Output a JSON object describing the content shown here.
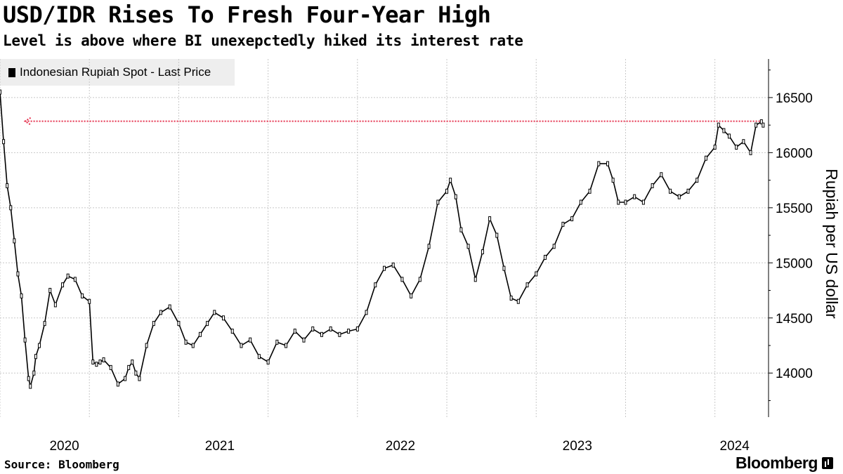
{
  "header": {
    "title": "USD/IDR Rises To Fresh Four-Year High",
    "subtitle": "Level is above where BI unexepctedly hiked its interest rate"
  },
  "legend": {
    "label": "Indonesian Rupiah Spot - Last Price"
  },
  "footer": {
    "source": "Source: Bloomberg",
    "brand": "Bloomberg"
  },
  "colors": {
    "line": "#000000",
    "reference": "#e5334f",
    "grid": "#c8c8c8"
  },
  "chart_data": {
    "type": "line",
    "title": "USD/IDR Rises To Fresh Four-Year High",
    "subtitle": "Level is above where BI unexepctedly hiked its interest rate",
    "ylabel": "Rupiah per US dollar",
    "xlabel": "",
    "ylim": [
      13600,
      16850
    ],
    "yticks": [
      14000,
      14500,
      15000,
      15500,
      16000,
      16500
    ],
    "xlim": [
      2020.0,
      2024.3
    ],
    "xticks": [
      {
        "label": "2020",
        "value": 2020.36
      },
      {
        "label": "2021",
        "value": 2021.23
      },
      {
        "label": "2022",
        "value": 2022.24
      },
      {
        "label": "2023",
        "value": 2023.23
      },
      {
        "label": "2024",
        "value": 2024.11
      }
    ],
    "x_gridlines": [
      2020.0,
      2020.5,
      2021.0,
      2021.5,
      2022.0,
      2022.5,
      2023.0,
      2023.5,
      2024.0
    ],
    "reference_line": {
      "value": 16285,
      "style": "dotted",
      "x_start": 2020.14,
      "x_end": 2024.27
    },
    "series": [
      {
        "name": "Indonesian Rupiah Spot - Last Price",
        "x": [
          2020.0,
          2020.02,
          2020.04,
          2020.06,
          2020.08,
          2020.1,
          2020.12,
          2020.14,
          2020.16,
          2020.17,
          2020.19,
          2020.2,
          2020.22,
          2020.25,
          2020.28,
          2020.31,
          2020.35,
          2020.38,
          2020.42,
          2020.46,
          2020.5,
          2020.52,
          2020.54,
          2020.56,
          2020.58,
          2020.62,
          2020.66,
          2020.7,
          2020.72,
          2020.74,
          2020.76,
          2020.78,
          2020.82,
          2020.86,
          2020.9,
          2020.95,
          2021.0,
          2021.04,
          2021.08,
          2021.12,
          2021.16,
          2021.2,
          2021.25,
          2021.3,
          2021.35,
          2021.4,
          2021.45,
          2021.5,
          2021.55,
          2021.6,
          2021.65,
          2021.7,
          2021.75,
          2021.8,
          2021.85,
          2021.9,
          2021.95,
          2022.0,
          2022.05,
          2022.1,
          2022.15,
          2022.2,
          2022.25,
          2022.3,
          2022.35,
          2022.4,
          2022.45,
          2022.5,
          2022.52,
          2022.55,
          2022.58,
          2022.62,
          2022.66,
          2022.7,
          2022.74,
          2022.78,
          2022.82,
          2022.86,
          2022.9,
          2022.95,
          2023.0,
          2023.05,
          2023.1,
          2023.15,
          2023.2,
          2023.25,
          2023.3,
          2023.35,
          2023.4,
          2023.43,
          2023.46,
          2023.5,
          2023.55,
          2023.6,
          2023.65,
          2023.7,
          2023.75,
          2023.8,
          2023.85,
          2023.9,
          2023.95,
          2024.0,
          2024.02,
          2024.05,
          2024.08,
          2024.12,
          2024.16,
          2024.2,
          2024.23,
          2024.26,
          2024.27
        ],
        "values": [
          16550,
          16100,
          15700,
          15500,
          15200,
          14900,
          14700,
          14300,
          13950,
          13880,
          14000,
          14150,
          14250,
          14450,
          14750,
          14620,
          14800,
          14880,
          14850,
          14700,
          14650,
          14100,
          14080,
          14100,
          14120,
          14050,
          13900,
          13950,
          14050,
          14100,
          14000,
          13950,
          14250,
          14450,
          14550,
          14600,
          14450,
          14280,
          14250,
          14350,
          14450,
          14550,
          14500,
          14380,
          14250,
          14300,
          14150,
          14100,
          14280,
          14250,
          14380,
          14300,
          14400,
          14350,
          14400,
          14350,
          14380,
          14400,
          14550,
          14800,
          14950,
          14980,
          14850,
          14700,
          14850,
          15150,
          15550,
          15650,
          15750,
          15600,
          15300,
          15150,
          14850,
          15100,
          15400,
          15250,
          14950,
          14680,
          14650,
          14800,
          14900,
          15050,
          15150,
          15350,
          15400,
          15550,
          15650,
          15900,
          15900,
          15750,
          15550,
          15550,
          15600,
          15550,
          15700,
          15800,
          15650,
          15600,
          15650,
          15750,
          15950,
          16050,
          16250,
          16200,
          16150,
          16050,
          16100,
          16000,
          16250,
          16280,
          16250
        ]
      }
    ]
  }
}
